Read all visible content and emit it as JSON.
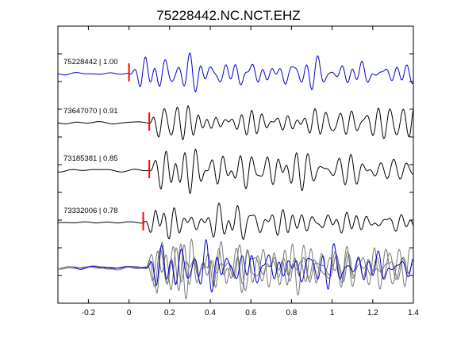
{
  "chart_data": {
    "type": "line",
    "title": "75228442.NC.NCT.EHZ",
    "xlabel": "",
    "ylabel": "",
    "xlim": [
      -0.35,
      1.4
    ],
    "xticks": [
      -0.2,
      0,
      0.2,
      0.4,
      0.6,
      0.8,
      1,
      1.2,
      1.4
    ],
    "xtick_labels": [
      "-0.2",
      "0",
      "0.2",
      "0.4",
      "0.6",
      "0.8",
      "1",
      "1.2",
      "1.4"
    ],
    "grid": false,
    "colors": {
      "reference": "#0000cc",
      "match": "#000000",
      "overlay_match": "#777777",
      "pick": "#ff0000",
      "axes": "#000000"
    },
    "traces": [
      {
        "label": "75228442 | 1.00",
        "event_id": "75228442",
        "correlation": 1.0,
        "pick_time": 0.0,
        "color": "reference"
      },
      {
        "label": "73647070 | 0.91",
        "event_id": "73647070",
        "correlation": 0.91,
        "pick_time": 0.1,
        "color": "match"
      },
      {
        "label": "73185381 | 0.85",
        "event_id": "73185381",
        "correlation": 0.85,
        "pick_time": 0.1,
        "color": "match"
      },
      {
        "label": "73332006 | 0.78",
        "event_id": "73332006",
        "correlation": 0.78,
        "pick_time": 0.07,
        "color": "match"
      }
    ],
    "overlay": {
      "description_visible": false,
      "includes": [
        "75228442",
        "73647070",
        "73185381",
        "73332006"
      ]
    }
  }
}
